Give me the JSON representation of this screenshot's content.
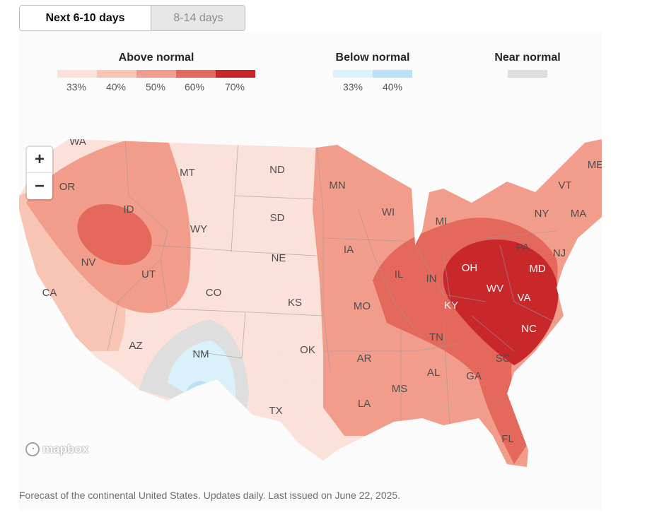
{
  "tabs": {
    "active": "Next 6-10 days",
    "inactive": "8-14 days"
  },
  "legend": {
    "above": {
      "title": "Above normal",
      "ticks": [
        "33%",
        "40%",
        "50%",
        "60%",
        "70%"
      ],
      "colors": [
        "#fbe1d9",
        "#f8c4b3",
        "#f29d8c",
        "#e4685c",
        "#c8282a"
      ]
    },
    "below": {
      "title": "Below normal",
      "ticks": [
        "33%",
        "40%"
      ],
      "colors": [
        "#daf0fb",
        "#b9e2f6"
      ]
    },
    "near": {
      "title": "Near normal",
      "color": "#dedede"
    }
  },
  "map": {
    "zoom_in": "+",
    "zoom_out": "−",
    "attribution": "mapbox",
    "states": [
      "WA",
      "OR",
      "ID",
      "MT",
      "ND",
      "MN",
      "WI",
      "MI",
      "ME",
      "VT",
      "NY",
      "MA",
      "PA",
      "NJ",
      "SD",
      "WY",
      "NV",
      "UT",
      "IA",
      "IL",
      "IN",
      "OH",
      "MD",
      "WV",
      "VA",
      "NE",
      "CA",
      "CO",
      "KS",
      "MO",
      "KY",
      "NC",
      "TN",
      "AZ",
      "NM",
      "OK",
      "AR",
      "SC",
      "AL",
      "GA",
      "MS",
      "TX",
      "LA",
      "FL"
    ]
  },
  "caption": "Forecast of the continental United States. Updates daily. Last issued on June 22, 2025."
}
